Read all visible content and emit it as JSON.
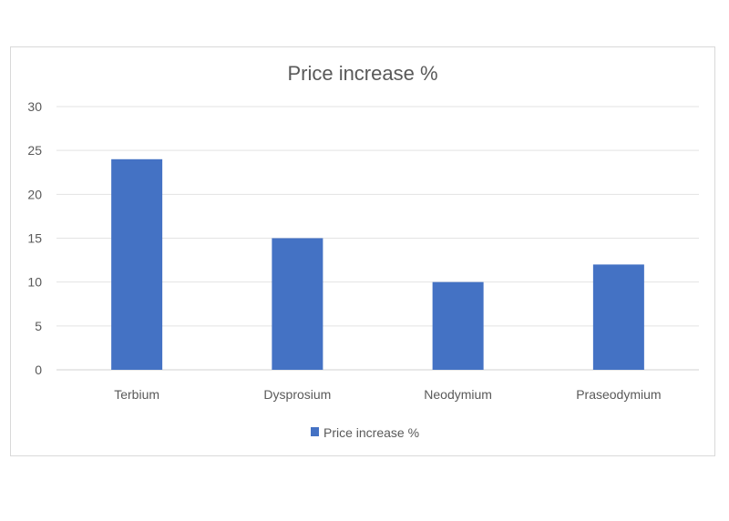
{
  "chart_data": {
    "type": "bar",
    "title": "Price increase %",
    "categories": [
      "Terbium",
      "Dysprosium",
      "Neodymium",
      "Praseodymium"
    ],
    "series": [
      {
        "name": "Price increase %",
        "values": [
          24,
          15,
          10,
          12
        ],
        "color": "#4472c4"
      }
    ],
    "xlabel": "",
    "ylabel": "",
    "ylim": [
      0,
      30
    ],
    "yticks": [
      0,
      5,
      10,
      15,
      20,
      25,
      30
    ],
    "grid": true,
    "legend": "bottom"
  }
}
